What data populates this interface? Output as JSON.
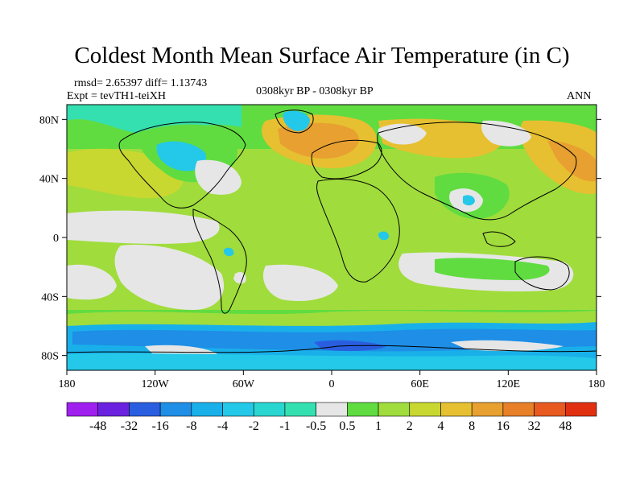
{
  "chart_data": {
    "type": "heatmap",
    "title": "Coldest Month Mean Surface Air Temperature (in C)",
    "stats_label": "rmsd= 2.65397 diff= 1.13743",
    "experiment_label": "Expt = tevTH1-teiXH",
    "period_label": "0308kyr BP - 0308kyr BP",
    "season_label": "ANN",
    "x_axis": {
      "range": [
        -180,
        180
      ],
      "ticks": [
        -180,
        -120,
        -60,
        0,
        60,
        120,
        180
      ],
      "tick_labels": [
        "180",
        "120W",
        "60W",
        "0",
        "60E",
        "120E",
        "180"
      ]
    },
    "y_axis": {
      "range": [
        -90,
        90
      ],
      "ticks": [
        80,
        40,
        0,
        -40,
        -80
      ],
      "tick_labels": [
        "80N",
        "40N",
        "0",
        "40S",
        "80S"
      ]
    },
    "colorbar": {
      "levels": [
        "-48",
        "-32",
        "-16",
        "-8",
        "-4",
        "-2",
        "-1",
        "-0.5",
        "0.5",
        "1",
        "2",
        "4",
        "8",
        "16",
        "32",
        "48"
      ],
      "colors": [
        "#a020f0",
        "#6a22e0",
        "#2a5ee0",
        "#1e8ee6",
        "#19b0ea",
        "#24c8e8",
        "#2ad6d0",
        "#34e0b0",
        "#e6e6e6",
        "#60dc40",
        "#a0dc3c",
        "#c8d830",
        "#e6c030",
        "#e8a030",
        "#e88028",
        "#e85a20",
        "#e03010"
      ]
    }
  }
}
